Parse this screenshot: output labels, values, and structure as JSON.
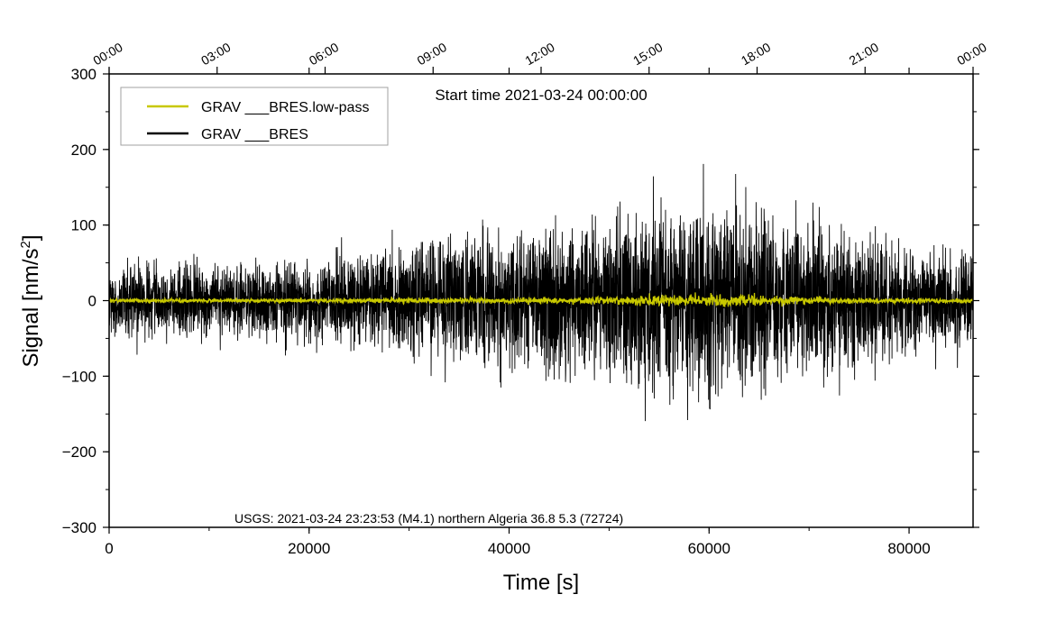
{
  "chart_data": {
    "type": "line",
    "title": "Start time 2021-03-24 00:00:00",
    "xlabel": "Time [s]",
    "ylabel": "Signal [nm/s²]",
    "ylabel_main": "Signal [nm/s",
    "ylabel_sup": "2",
    "ylabel_end": "]",
    "xlim": [
      0,
      86400
    ],
    "ylim": [
      -300,
      300
    ],
    "x_ticks": [
      0,
      20000,
      40000,
      60000,
      80000
    ],
    "x_tick_labels": [
      "0",
      "20000",
      "40000",
      "60000",
      "80000"
    ],
    "y_ticks": [
      -300,
      -200,
      -100,
      0,
      100,
      200,
      300
    ],
    "y_tick_labels": [
      "−300",
      "−200",
      "−100",
      "0",
      "100",
      "200",
      "300"
    ],
    "top_ticks_seconds": [
      0,
      10800,
      21600,
      32400,
      43200,
      54000,
      64800,
      75600,
      86400
    ],
    "top_tick_labels": [
      "00:00",
      "03:00",
      "06:00",
      "09:00",
      "12:00",
      "15:00",
      "18:00",
      "21:00",
      "00:00"
    ],
    "grid": false,
    "legend_position": "top-left",
    "annotation": "USGS: 2021-03-24 23:23:53 (M4.1) northern Algeria 36.8 5.3 (72724)",
    "series": [
      {
        "name": "GRAV ___BRES.low-pass",
        "color": "#c8c800",
        "envelope": {
          "x": [
            0,
            10000,
            20000,
            30000,
            40000,
            45000,
            50000,
            55000,
            60000,
            63000,
            66000,
            70000,
            75000,
            80000,
            86400
          ],
          "amplitude": [
            3,
            3,
            3,
            4,
            4,
            5,
            6,
            9,
            8,
            9,
            7,
            5,
            4,
            4,
            3
          ]
        }
      },
      {
        "name": "GRAV ___BRES",
        "color": "#000000",
        "envelope": {
          "x": [
            0,
            5000,
            10000,
            15000,
            20000,
            25000,
            30000,
            35000,
            40000,
            45000,
            50000,
            55000,
            60000,
            65000,
            70000,
            75000,
            80000,
            86400
          ],
          "amplitude": [
            60,
            62,
            62,
            62,
            65,
            85,
            95,
            105,
            110,
            120,
            135,
            160,
            160,
            150,
            125,
            105,
            85,
            70
          ]
        }
      }
    ]
  }
}
